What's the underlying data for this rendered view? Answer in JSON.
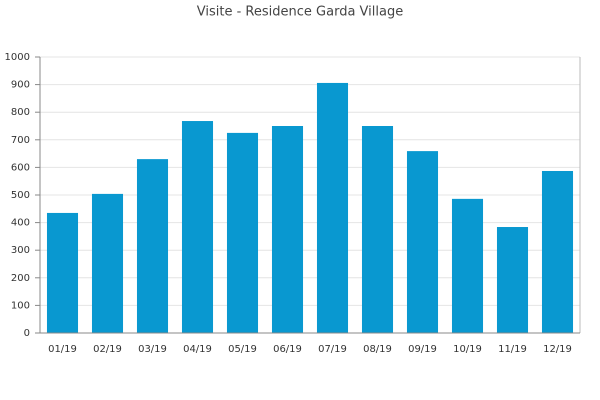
{
  "chart_data": {
    "type": "bar",
    "title": "Visite - Residence Garda Village",
    "categories": [
      "01/19",
      "02/19",
      "03/19",
      "04/19",
      "05/19",
      "06/19",
      "07/19",
      "08/19",
      "09/19",
      "10/19",
      "11/19",
      "12/19"
    ],
    "values": [
      435,
      504,
      630,
      768,
      725,
      750,
      906,
      750,
      659,
      486,
      384,
      587
    ],
    "color": "#0998d0",
    "ylim": [
      0,
      1000
    ],
    "yticks": [
      0,
      100,
      200,
      300,
      400,
      500,
      600,
      700,
      800,
      900,
      1000
    ],
    "grid": true
  }
}
